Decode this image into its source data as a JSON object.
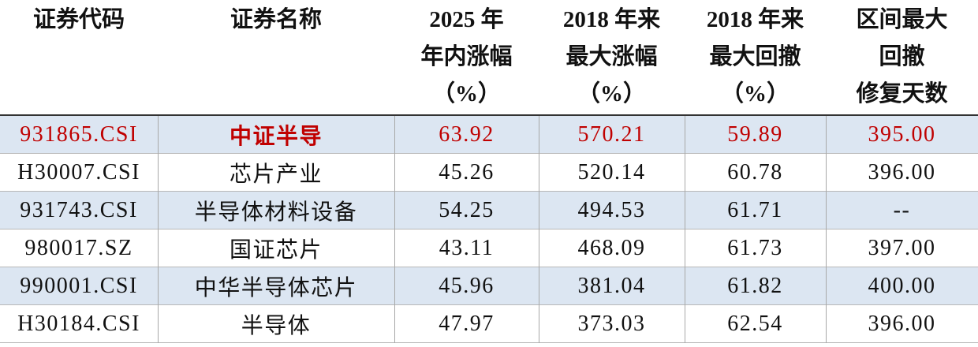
{
  "table": {
    "header": [
      [
        "证券代码"
      ],
      [
        "证券名称"
      ],
      [
        "2025 年",
        "年内涨幅",
        "（%）"
      ],
      [
        "2018 年来",
        "最大涨幅",
        "（%）"
      ],
      [
        "2018 年来",
        "最大回撤",
        "（%）"
      ],
      [
        "区间最大",
        "回撤",
        "修复天数"
      ]
    ],
    "rows": [
      [
        "931865.CSI",
        "中证半导",
        "63.92",
        "570.21",
        "59.89",
        "395.00"
      ],
      [
        "H30007.CSI",
        "芯片产业",
        "45.26",
        "520.14",
        "60.78",
        "396.00"
      ],
      [
        "931743.CSI",
        "半导体材料设备",
        "54.25",
        "494.53",
        "61.71",
        "--"
      ],
      [
        "980017.SZ",
        "国证芯片",
        "43.11",
        "468.09",
        "61.73",
        "397.00"
      ],
      [
        "990001.CSI",
        "中华半导体芯片",
        "45.96",
        "381.04",
        "61.82",
        "400.00"
      ],
      [
        "H30184.CSI",
        "半导体",
        "47.97",
        "373.03",
        "62.54",
        "396.00"
      ]
    ]
  }
}
